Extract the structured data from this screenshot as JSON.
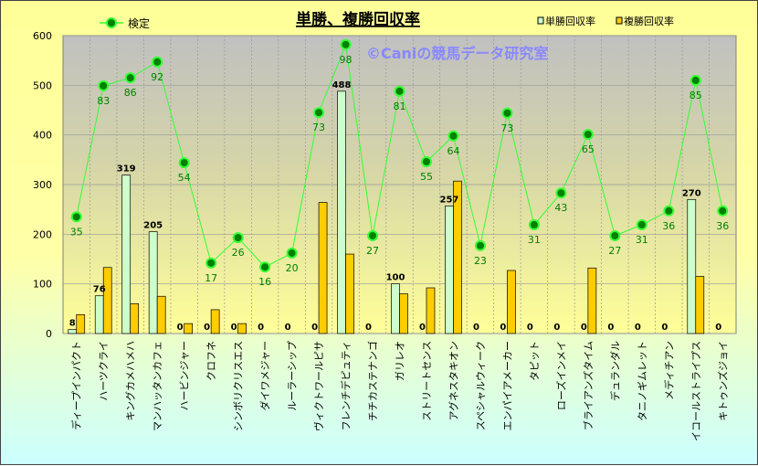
{
  "chart_data": {
    "type": "bar",
    "title": "単勝、複勝回収率",
    "watermark": "©Caniの競馬データ研究室",
    "ylim": [
      0,
      600
    ],
    "yticks": [
      0,
      100,
      200,
      300,
      400,
      500,
      600
    ],
    "legend_position": "top",
    "categories": [
      "ディープインパクト",
      "ハーツクライ",
      "キングカメハメハ",
      "マンハッタンカフェ",
      "ハービンジャー",
      "クロフネ",
      "シンボリクリスエス",
      "ダイワメジャー",
      "ルーラーシップ",
      "ヴィクトワールピサ",
      "フレンチデピュティ",
      "チチカステナンゴ",
      "ガリレオ",
      "ストリートセンス",
      "アグネスタキオン",
      "スペシャルウィーク",
      "エンパイアメーカー",
      "タピット",
      "ローズインメイ",
      "ブライアンズタイム",
      "デュランダル",
      "タニノギムレット",
      "メディチアン",
      "イコールストライプス",
      "キトゥンズジョイ"
    ],
    "series": [
      {
        "name": "単勝回収率",
        "type": "bar",
        "color": "#CCFFCC",
        "values": [
          8,
          76,
          319,
          205,
          0,
          0,
          0,
          0,
          0,
          0,
          488,
          0,
          100,
          0,
          257,
          0,
          0,
          0,
          0,
          0,
          0,
          0,
          0,
          270,
          0
        ]
      },
      {
        "name": "複勝回収率",
        "type": "bar",
        "color": "#FFCC00",
        "values": [
          38,
          133,
          60,
          75,
          20,
          48,
          20,
          0,
          0,
          264,
          160,
          0,
          80,
          92,
          307,
          0,
          127,
          0,
          0,
          132,
          0,
          0,
          0,
          115,
          0
        ]
      },
      {
        "name": "検定",
        "type": "line",
        "color": "#33FF33",
        "values": [
          235,
          499,
          515,
          547,
          344,
          142,
          193,
          134,
          162,
          445,
          582,
          197,
          488,
          346,
          398,
          177,
          444,
          219,
          283,
          401,
          197,
          219,
          247,
          510,
          247
        ],
        "labels": [
          35,
          83,
          86,
          92,
          54,
          17,
          26,
          16,
          20,
          73,
          98,
          27,
          81,
          55,
          64,
          23,
          73,
          31,
          43,
          65,
          27,
          31,
          36,
          85,
          36
        ]
      }
    ]
  }
}
